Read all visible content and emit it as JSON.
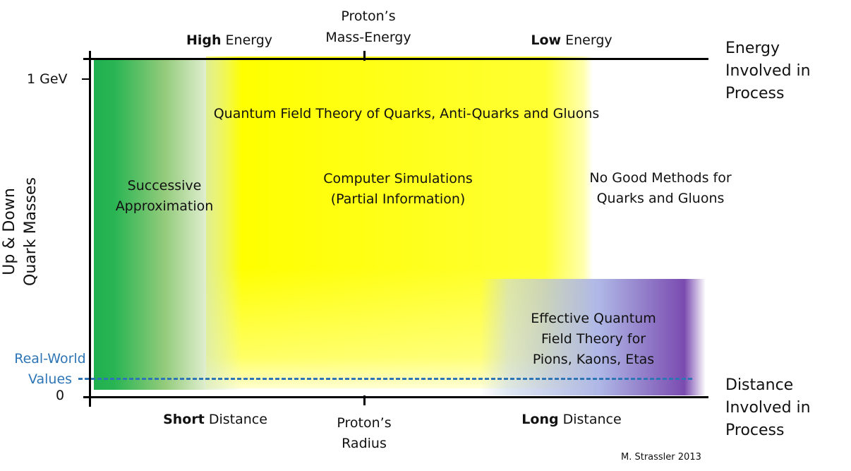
{
  "top_axis": {
    "high_energy": {
      "bold": "High",
      "rest": " Energy"
    },
    "proton_mass_energy": [
      "Proton’s",
      "Mass-Energy"
    ],
    "low_energy": {
      "bold": "Low",
      "rest": " Energy"
    },
    "axis_title": [
      "Energy",
      "Involved in",
      "Process"
    ]
  },
  "bottom_axis": {
    "short_distance": {
      "bold": "Short",
      "rest": " Distance"
    },
    "proton_radius": [
      "Proton’s",
      "Radius"
    ],
    "long_distance": {
      "bold": "Long",
      "rest": " Distance"
    },
    "axis_title": [
      "Distance",
      "Involved in",
      "Process"
    ]
  },
  "y_axis": {
    "title": [
      "Up & Down",
      "Quark Masses"
    ],
    "tick_top": "1 GeV",
    "tick_zero": "0",
    "real_world": [
      "Real-World",
      "Values"
    ]
  },
  "regions": {
    "qft": "Quantum Field Theory of Quarks, Anti-Quarks and Gluons",
    "successive": [
      "Successive",
      "Approximation"
    ],
    "simulations": [
      "Computer Simulations",
      "(Partial Information)"
    ],
    "no_good": [
      "No Good Methods for",
      "Quarks and Gluons"
    ],
    "effective": [
      "Effective Quantum",
      "Field Theory for",
      "Pions, Kaons, Etas"
    ]
  },
  "credit": "M. Strassler 2013",
  "colors": {
    "green": "#1fb050",
    "yellow": "#ffff00",
    "purple": "#7030a0",
    "blue": "#9dc3e6",
    "dashed_line": "#2e75b6",
    "real_world_text": "#2e75b6"
  }
}
